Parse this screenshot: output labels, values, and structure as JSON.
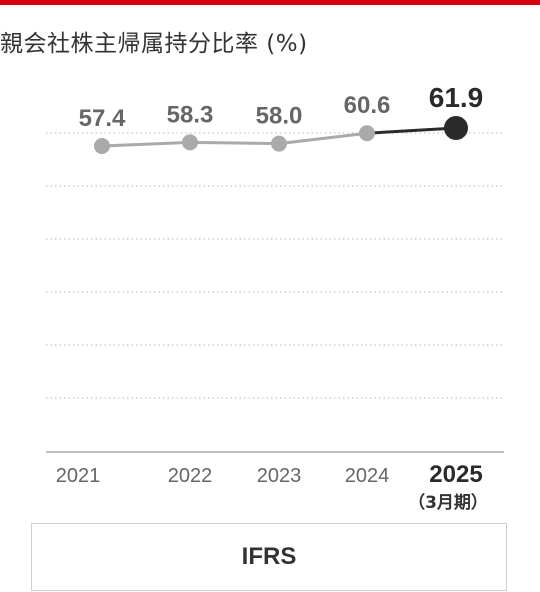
{
  "accent_color": "#d7000f",
  "chart_data": {
    "type": "line",
    "title": "親会社株主帰属持分比率 (%)",
    "categories": [
      "2021",
      "2022",
      "2023",
      "2024",
      "2025"
    ],
    "category_notes": [
      "",
      "",
      "",
      "",
      "（3月期）"
    ],
    "values": [
      57.4,
      58.3,
      58.0,
      60.6,
      61.9
    ],
    "data_labels": [
      "57.4",
      "58.3",
      "58.0",
      "60.6",
      "61.9"
    ],
    "highlight_index": 4,
    "grid": true,
    "line_color": "#aaaaaa",
    "highlight_color": "#2a2a2a",
    "label_color": "#666666",
    "xlabel": "",
    "ylabel": ""
  },
  "accounting_standard": "IFRS"
}
